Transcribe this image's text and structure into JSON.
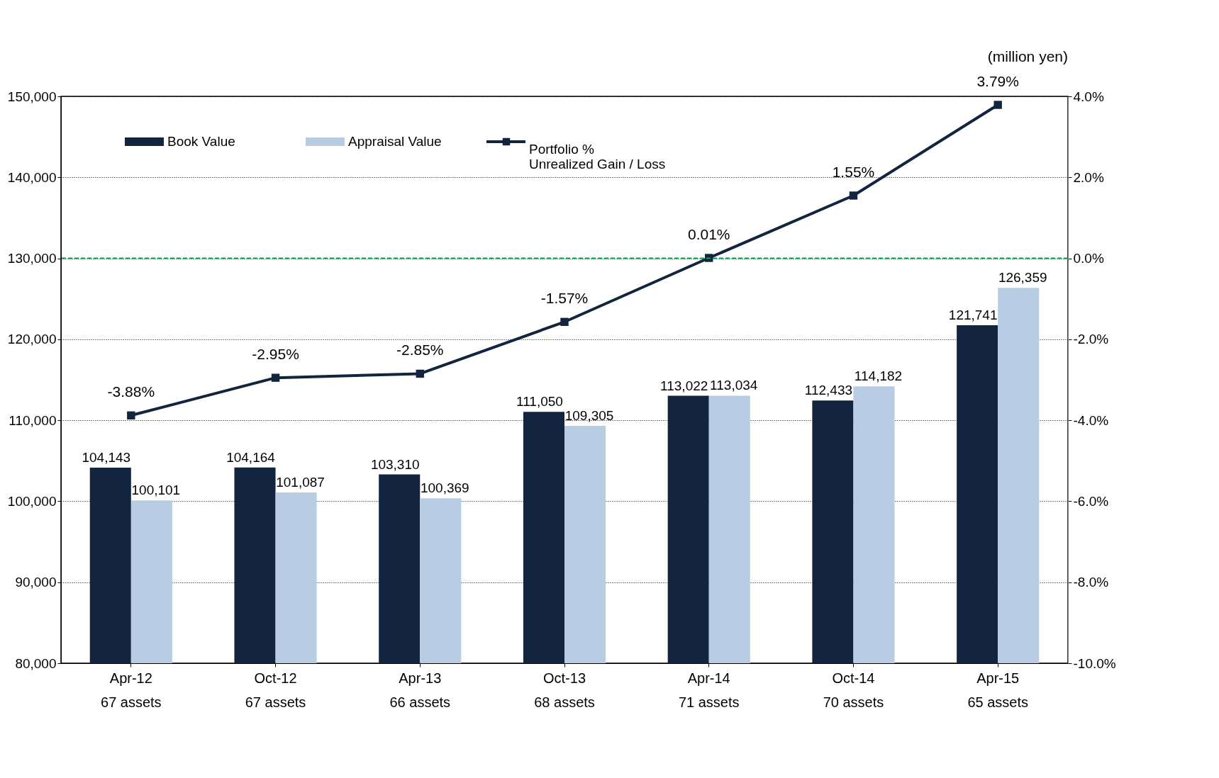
{
  "chart_data": {
    "type": "bar",
    "categories": [
      "Apr-12\n67 assets",
      "Oct-12\n67 assets",
      "Apr-13\n66 assets",
      "Oct-13\n68 assets",
      "Apr-14\n71 assets",
      "Oct-14\n70 assets",
      "Apr-15\n65 assets"
    ],
    "series": [
      {
        "name": "Book Value",
        "color": "#13243f",
        "values": [
          104143,
          104164,
          103310,
          111050,
          113022,
          112433,
          121741
        ],
        "value_labels": [
          "104,143",
          "104,164",
          "103,310",
          "111,050",
          "113,022",
          "112,433",
          "121,741"
        ]
      },
      {
        "name": "Appraisal Value",
        "color": "#b8cce4",
        "values": [
          100101,
          101087,
          100369,
          109305,
          113034,
          114182,
          126359
        ],
        "value_labels": [
          "100,101",
          "101,087",
          "100,369",
          "109,305",
          "113,034",
          "114,182",
          "126,359"
        ]
      },
      {
        "name": "Portfolio %\nUnrealized Gain / Loss",
        "type": "line",
        "axis": "y2",
        "color": "#13243f",
        "values": [
          -3.88,
          -2.95,
          -2.85,
          -1.57,
          0.01,
          1.55,
          3.79
        ],
        "value_labels": [
          "-3.88%",
          "-2.95%",
          "-2.85%",
          "-1.57%",
          "0.01%",
          "1.55%",
          "3.79%"
        ]
      }
    ],
    "ylim": [
      80000,
      150000
    ],
    "yticks": [
      {
        "value": 80000,
        "label": "80,000"
      },
      {
        "value": 90000,
        "label": "90,000"
      },
      {
        "value": 100000,
        "label": "100,000"
      },
      {
        "value": 110000,
        "label": "110,000"
      },
      {
        "value": 120000,
        "label": "120,000"
      },
      {
        "value": 130000,
        "label": "130,000"
      },
      {
        "value": 140000,
        "label": "140,000"
      },
      {
        "value": 150000,
        "label": "150,000"
      }
    ],
    "y2lim": [
      -10,
      4
    ],
    "y2ticks": [
      {
        "value": -10,
        "label": "-10.0%"
      },
      {
        "value": -8,
        "label": "-8.0%"
      },
      {
        "value": -6,
        "label": "-6.0%"
      },
      {
        "value": -4,
        "label": "-4.0%"
      },
      {
        "value": -2,
        "label": "-2.0%"
      },
      {
        "value": 0,
        "label": "0.0%"
      },
      {
        "value": 2,
        "label": "2.0%"
      },
      {
        "value": 4,
        "label": "4.0%"
      }
    ],
    "ref_lines": [
      {
        "axis": "y2",
        "value": 0,
        "color": "#00a650",
        "line_style": "dashed"
      }
    ],
    "annotations": [
      "(million yen)"
    ],
    "grid": "y",
    "legend": "top left",
    "marker": "square"
  }
}
